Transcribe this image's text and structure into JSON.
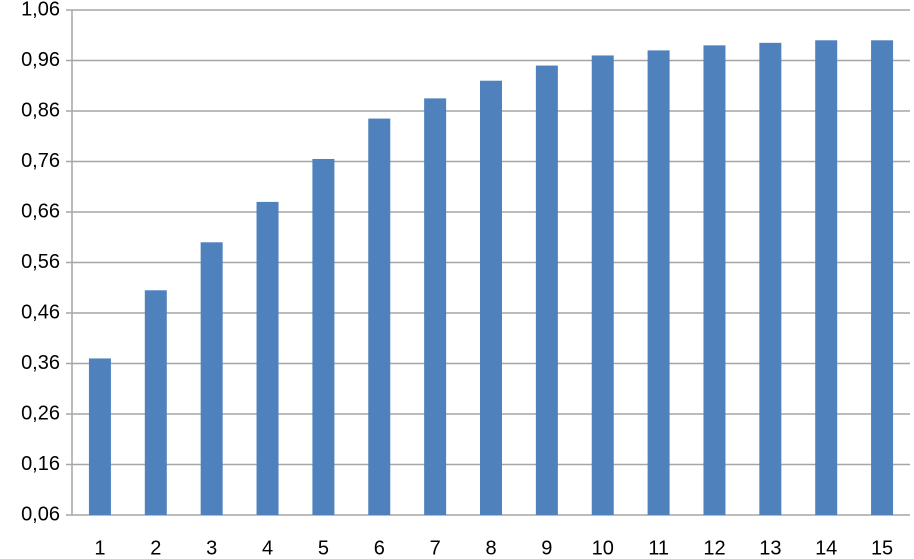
{
  "chart_data": {
    "type": "bar",
    "categories": [
      "1",
      "2",
      "3",
      "4",
      "5",
      "6",
      "7",
      "8",
      "9",
      "10",
      "11",
      "12",
      "13",
      "14",
      "15"
    ],
    "values": [
      0.37,
      0.505,
      0.6,
      0.68,
      0.765,
      0.845,
      0.885,
      0.92,
      0.95,
      0.97,
      0.98,
      0.99,
      0.995,
      1.0,
      1.0
    ],
    "color": "#4f81bd",
    "ylim": [
      0.06,
      1.06
    ],
    "yticks": [
      {
        "value": 0.06,
        "label": "0,06"
      },
      {
        "value": 0.16,
        "label": "0,16"
      },
      {
        "value": 0.26,
        "label": "0,26"
      },
      {
        "value": 0.36,
        "label": "0,36"
      },
      {
        "value": 0.46,
        "label": "0,46"
      },
      {
        "value": 0.56,
        "label": "0,56"
      },
      {
        "value": 0.66,
        "label": "0,66"
      },
      {
        "value": 0.76,
        "label": "0,76"
      },
      {
        "value": 0.86,
        "label": "0,86"
      },
      {
        "value": 0.96,
        "label": "0,96"
      },
      {
        "value": 1.06,
        "label": "1,06"
      }
    ],
    "grid": true
  }
}
